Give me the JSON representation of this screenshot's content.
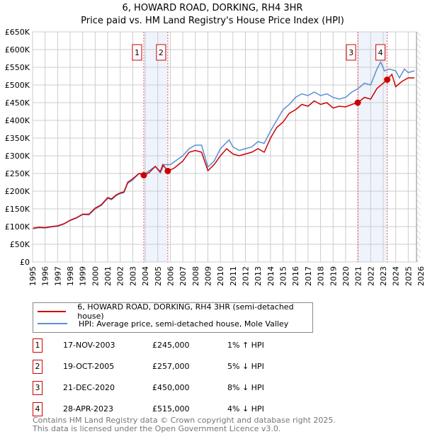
{
  "title": "6, HOWARD ROAD, DORKING, RH4 3HR",
  "subtitle": "Price paid vs. HM Land Registry's House Price Index (HPI)",
  "colors": {
    "price": "#cc0000",
    "hpi": "#5b8fd4",
    "band": "#eef3fc",
    "grid": "#cccccc"
  },
  "chart_data": {
    "type": "line",
    "title": "6, HOWARD ROAD, DORKING, RH4 3HR",
    "subtitle": "Price paid vs. HM Land Registry's House Price Index (HPI)",
    "xlim": [
      1995,
      2026
    ],
    "ylim": [
      0,
      650000
    ],
    "x_ticks": [
      "1995",
      "1996",
      "1997",
      "1998",
      "1999",
      "2000",
      "2001",
      "2002",
      "2003",
      "2004",
      "2005",
      "2006",
      "2007",
      "2008",
      "2009",
      "2010",
      "2011",
      "2012",
      "2013",
      "2014",
      "2015",
      "2016",
      "2017",
      "2018",
      "2019",
      "2020",
      "2021",
      "2022",
      "2023",
      "2024",
      "2025",
      "2026"
    ],
    "y_ticks": [
      "£0",
      "£50K",
      "£100K",
      "£150K",
      "£200K",
      "£250K",
      "£300K",
      "£350K",
      "£400K",
      "£450K",
      "£500K",
      "£550K",
      "£600K",
      "£650K"
    ],
    "grid": true,
    "series": [
      {
        "name": "6, HOWARD ROAD, DORKING, RH4 3HR (semi-detached house)",
        "color": "#cc0000",
        "x": [
          1995,
          1995.5,
          1996,
          1996.5,
          1997,
          1997.5,
          1998,
          1998.5,
          1999,
          1999.5,
          2000,
          2000.5,
          2001,
          2001.3,
          2001.7,
          2002,
          2002.3,
          2002.6,
          2003,
          2003.5,
          2003.88,
          2004.3,
          2004.8,
          2005.2,
          2005.4,
          2005.8,
          2006.3,
          2007,
          2007.5,
          2008,
          2008.5,
          2009,
          2009.5,
          2010,
          2010.5,
          2011,
          2011.5,
          2012,
          2012.5,
          2013,
          2013.5,
          2014,
          2014.5,
          2015,
          2015.5,
          2016,
          2016.5,
          2017,
          2017.5,
          2018,
          2018.5,
          2019,
          2019.5,
          2020,
          2020.5,
          2020.97,
          2021.5,
          2022,
          2022.5,
          2023,
          2023.32,
          2023.7,
          2024,
          2024.5,
          2025,
          2025.5
        ],
        "y": [
          95,
          98,
          97,
          100,
          102,
          108,
          118,
          125,
          135,
          135,
          152,
          162,
          182,
          178,
          190,
          195,
          198,
          225,
          235,
          250,
          245,
          252,
          270,
          255,
          275,
          257,
          265,
          285,
          310,
          315,
          310,
          258,
          275,
          300,
          320,
          305,
          300,
          305,
          310,
          320,
          310,
          350,
          380,
          395,
          420,
          430,
          445,
          440,
          455,
          445,
          450,
          435,
          440,
          438,
          445,
          450,
          465,
          460,
          490,
          505,
          515,
          530,
          495,
          510,
          520,
          520
        ]
      },
      {
        "name": "HPI: Average price, semi-detached house, Mole Valley",
        "color": "#5b8fd4",
        "x": [
          1995,
          1995.5,
          1996,
          1996.5,
          1997,
          1997.5,
          1998,
          1998.5,
          1999,
          1999.5,
          2000,
          2000.5,
          2001,
          2001.3,
          2001.7,
          2002,
          2002.3,
          2002.6,
          2003,
          2003.5,
          2004,
          2004.8,
          2005.2,
          2005.5,
          2006,
          2007,
          2007.5,
          2008,
          2008.5,
          2009,
          2009.5,
          2010,
          2010.7,
          2011,
          2011.5,
          2012,
          2012.5,
          2013,
          2013.5,
          2014,
          2014.5,
          2015,
          2015.5,
          2016,
          2016.5,
          2017,
          2017.5,
          2018,
          2018.5,
          2019,
          2019.5,
          2020,
          2020.5,
          2021,
          2021.5,
          2022,
          2022.5,
          2022.8,
          2023.1,
          2023.5,
          2024,
          2024.3,
          2024.7,
          2025,
          2025.5
        ],
        "y": [
          94,
          97,
          96,
          99,
          101,
          107,
          117,
          124,
          134,
          133,
          150,
          160,
          180,
          176,
          188,
          193,
          196,
          222,
          232,
          250,
          250,
          270,
          252,
          275,
          275,
          300,
          320,
          330,
          330,
          268,
          285,
          320,
          345,
          325,
          315,
          320,
          325,
          340,
          335,
          370,
          400,
          430,
          445,
          465,
          475,
          470,
          480,
          470,
          475,
          465,
          460,
          465,
          480,
          490,
          505,
          500,
          545,
          565,
          540,
          545,
          540,
          520,
          545,
          535,
          540
        ]
      }
    ],
    "sales": [
      {
        "label": "1",
        "x": 2003.88,
        "y": 245
      },
      {
        "label": "2",
        "x": 2005.8,
        "y": 257
      },
      {
        "label": "3",
        "x": 2020.97,
        "y": 450
      },
      {
        "label": "4",
        "x": 2023.32,
        "y": 515
      }
    ],
    "y_units": "thousands GBP"
  },
  "legend": {
    "price": "6, HOWARD ROAD, DORKING, RH4 3HR (semi-detached house)",
    "hpi": "HPI: Average price, semi-detached house, Mole Valley"
  },
  "table": [
    {
      "num": "1",
      "date": "17-NOV-2003",
      "price": "£245,000",
      "change": "1% ↑ HPI"
    },
    {
      "num": "2",
      "date": "19-OCT-2005",
      "price": "£257,000",
      "change": "5% ↓ HPI"
    },
    {
      "num": "3",
      "date": "21-DEC-2020",
      "price": "£450,000",
      "change": "8% ↓ HPI"
    },
    {
      "num": "4",
      "date": "28-APR-2023",
      "price": "£515,000",
      "change": "4% ↓ HPI"
    }
  ],
  "footer": {
    "line1": "Contains HM Land Registry data © Crown copyright and database right 2025.",
    "line2": "This data is licensed under the Open Government Licence v3.0."
  }
}
